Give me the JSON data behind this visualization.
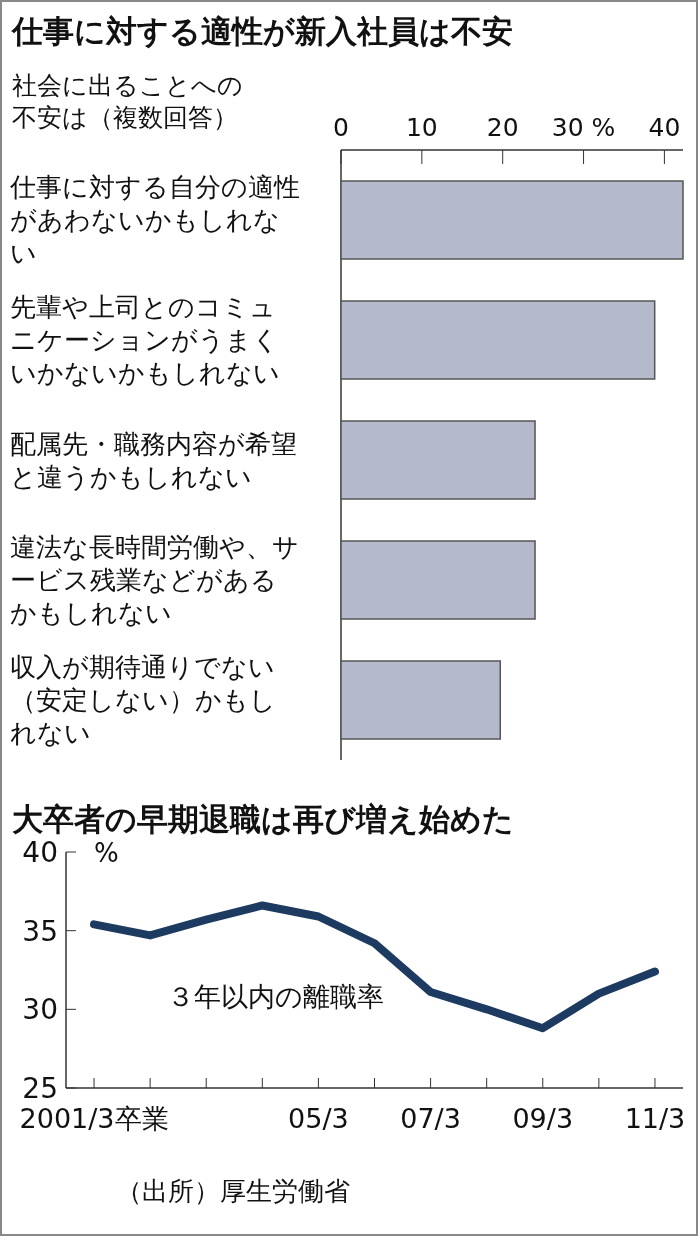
{
  "chart_data": [
    {
      "type": "bar",
      "orientation": "horizontal",
      "title": "仕事に対する適性が新入社員は不安",
      "subtitle": "社会に出ることへの不安は（複数回答）",
      "categories": [
        "仕事に対する自分の適性があわないかもしれない",
        "先輩や上司とのコミュニケーションがうまくいかないかもしれない",
        "配属先・職務内容が希望と違うかもしれない",
        "違法な長時間労働や、サービス残業などがあるかもしれない",
        "収入が期待通りでない（安定しない）かもしれない"
      ],
      "values": [
        42.3,
        38.8,
        24.0,
        24.0,
        19.7
      ],
      "color": "#b4bacb",
      "xlim": [
        0,
        42.3
      ],
      "xticks": [
        0,
        10,
        20,
        {
          "value": 30,
          "label": "30 %"
        },
        40
      ],
      "grid": false
    },
    {
      "type": "line",
      "title": "大卒者の早期退職は再び増え始めた",
      "ylabel": "%",
      "categories": [
        "2001/3卒業",
        null,
        null,
        null,
        "05/3",
        null,
        "07/3",
        null,
        "09/3",
        null,
        "11/3"
      ],
      "series": [
        {
          "name": "３年以内の離職率",
          "color": "#1d3a60",
          "values": [
            35.4,
            34.7,
            35.7,
            36.6,
            35.9,
            34.2,
            31.1,
            30.0,
            28.8,
            31.0,
            32.4
          ]
        }
      ],
      "ylim": [
        25,
        40
      ],
      "yticks": [
        25,
        30,
        35,
        40
      ],
      "grid": false,
      "marker": "none",
      "line_style": "solid",
      "annotations": [
        "（出所）厚生労働省"
      ]
    }
  ]
}
